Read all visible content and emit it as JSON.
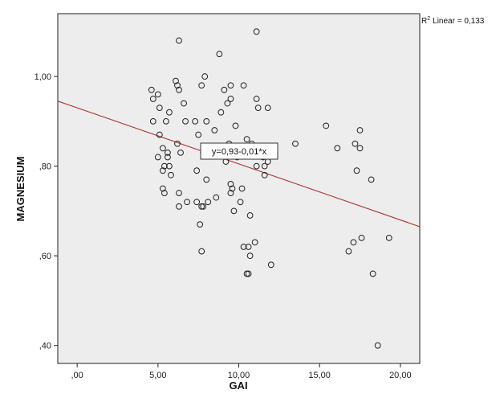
{
  "chart_data": {
    "type": "scatter",
    "xlabel": "GAI",
    "ylabel": "MAGNESIUM",
    "xlim": [
      -1.2,
      21.2
    ],
    "ylim": [
      0.36,
      1.14
    ],
    "x_ticks": [
      0,
      5,
      10,
      15,
      20
    ],
    "x_tick_labels": [
      ",00",
      "5,00",
      "10,00",
      "15,00",
      "20,00"
    ],
    "y_ticks": [
      0.4,
      0.6,
      0.8,
      1.0
    ],
    "y_tick_labels": [
      ",40",
      ",60",
      ",80",
      "1,00"
    ],
    "r2_label": "Linear = 0,133",
    "r2_prefix": "R",
    "r2_sup": "2",
    "fit_equation": "y=0,93-0,01*x",
    "fit_line": {
      "intercept": 0.93,
      "slope": -0.0125
    },
    "colors": {
      "plot_bg": "#ededed",
      "point_stroke": "#222222",
      "fit_line": "#b0413e"
    },
    "points": [
      [
        4.6,
        0.97
      ],
      [
        4.7,
        0.95
      ],
      [
        4.7,
        0.9
      ],
      [
        5.0,
        0.96
      ],
      [
        5.1,
        0.93
      ],
      [
        5.1,
        0.87
      ],
      [
        5.0,
        0.82
      ],
      [
        5.3,
        0.84
      ],
      [
        5.3,
        0.79
      ],
      [
        5.4,
        0.8
      ],
      [
        5.5,
        0.9
      ],
      [
        5.6,
        0.83
      ],
      [
        5.6,
        0.82
      ],
      [
        5.7,
        0.92
      ],
      [
        5.8,
        0.78
      ],
      [
        5.7,
        0.8
      ],
      [
        5.3,
        0.75
      ],
      [
        5.4,
        0.74
      ],
      [
        6.1,
        0.99
      ],
      [
        6.2,
        0.98
      ],
      [
        6.3,
        0.97
      ],
      [
        6.2,
        0.85
      ],
      [
        6.4,
        0.83
      ],
      [
        6.6,
        0.94
      ],
      [
        6.7,
        0.9
      ],
      [
        6.3,
        0.74
      ],
      [
        6.3,
        0.71
      ],
      [
        6.8,
        0.72
      ],
      [
        6.3,
        1.08
      ],
      [
        7.3,
        0.9
      ],
      [
        7.4,
        0.79
      ],
      [
        7.5,
        0.87
      ],
      [
        7.7,
        0.98
      ],
      [
        7.9,
        1.0
      ],
      [
        7.8,
        0.83
      ],
      [
        8.0,
        0.9
      ],
      [
        8.0,
        0.77
      ],
      [
        8.1,
        0.72
      ],
      [
        7.6,
        0.67
      ],
      [
        7.7,
        0.71
      ],
      [
        7.8,
        0.71
      ],
      [
        7.7,
        0.61
      ],
      [
        7.4,
        0.72
      ],
      [
        8.5,
        0.88
      ],
      [
        8.6,
        0.73
      ],
      [
        8.8,
        1.05
      ],
      [
        8.9,
        0.92
      ],
      [
        9.1,
        0.97
      ],
      [
        9.3,
        0.94
      ],
      [
        9.5,
        0.98
      ],
      [
        9.5,
        0.95
      ],
      [
        9.4,
        0.85
      ],
      [
        9.2,
        0.81
      ],
      [
        9.5,
        0.76
      ],
      [
        9.6,
        0.75
      ],
      [
        9.5,
        0.74
      ],
      [
        9.7,
        0.7
      ],
      [
        9.8,
        0.89
      ],
      [
        9.9,
        0.82
      ],
      [
        10.1,
        0.72
      ],
      [
        10.2,
        0.75
      ],
      [
        10.3,
        0.98
      ],
      [
        10.5,
        0.86
      ],
      [
        10.3,
        0.62
      ],
      [
        10.6,
        0.62
      ],
      [
        10.7,
        0.6
      ],
      [
        10.7,
        0.69
      ],
      [
        10.5,
        0.56
      ],
      [
        10.6,
        0.56
      ],
      [
        10.8,
        0.85
      ],
      [
        11.0,
        0.63
      ],
      [
        11.1,
        0.8
      ],
      [
        11.2,
        0.93
      ],
      [
        11.1,
        0.95
      ],
      [
        11.5,
        0.82
      ],
      [
        11.6,
        0.8
      ],
      [
        11.6,
        0.78
      ],
      [
        11.8,
        0.93
      ],
      [
        11.8,
        0.81
      ],
      [
        11.1,
        1.1
      ],
      [
        12.0,
        0.58
      ],
      [
        13.5,
        0.85
      ],
      [
        15.4,
        0.89
      ],
      [
        16.1,
        0.84
      ],
      [
        16.8,
        0.61
      ],
      [
        17.1,
        0.63
      ],
      [
        17.2,
        0.85
      ],
      [
        17.3,
        0.79
      ],
      [
        17.5,
        0.88
      ],
      [
        17.6,
        0.64
      ],
      [
        17.5,
        0.84
      ],
      [
        18.2,
        0.77
      ],
      [
        18.3,
        0.56
      ],
      [
        18.6,
        0.4
      ],
      [
        19.3,
        0.64
      ]
    ]
  }
}
